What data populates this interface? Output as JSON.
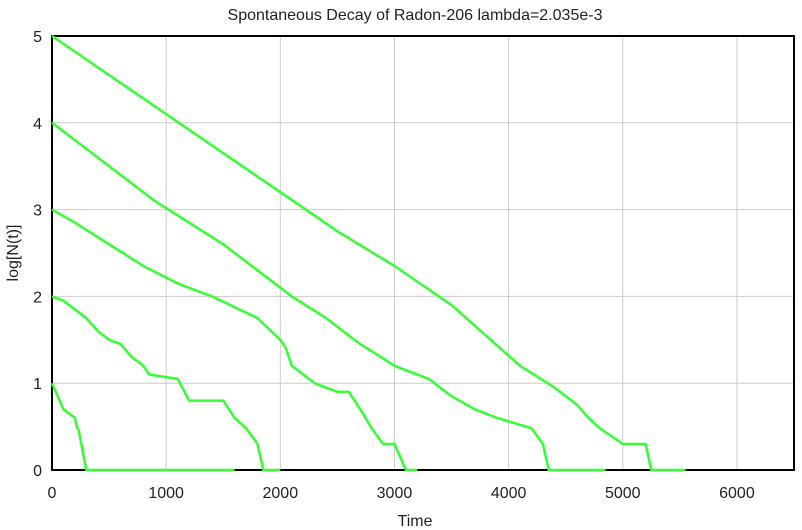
{
  "chart_data": {
    "type": "line",
    "title": "Spontaneous Decay of Radon-206 lambda=2.035e-3",
    "xlabel": "Time",
    "ylabel": "log[N(t)]",
    "xlim": [
      0,
      6500
    ],
    "ylim": [
      0,
      5
    ],
    "xticks": [
      0,
      1000,
      2000,
      3000,
      4000,
      5000,
      6000
    ],
    "yticks": [
      0,
      1,
      2,
      3,
      4,
      5
    ],
    "grid": true,
    "line_color": "#33ff33",
    "series": [
      {
        "x": [
          0,
          50,
          100,
          200,
          220,
          230,
          300,
          1600
        ],
        "y": [
          1.0,
          0.85,
          0.7,
          0.6,
          0.48,
          0.48,
          0.0,
          0.0
        ]
      },
      {
        "x": [
          0,
          100,
          200,
          300,
          400,
          500,
          600,
          700,
          800,
          850,
          1100,
          1200,
          1500,
          1600,
          1700,
          1800,
          1850,
          2000
        ],
        "y": [
          2.0,
          1.95,
          1.85,
          1.75,
          1.6,
          1.5,
          1.45,
          1.3,
          1.2,
          1.1,
          1.05,
          0.8,
          0.8,
          0.6,
          0.48,
          0.3,
          0.0,
          0.0
        ]
      },
      {
        "x": [
          0,
          200,
          500,
          800,
          1100,
          1400,
          1800,
          2000,
          2050,
          2100,
          2300,
          2500,
          2600,
          2700,
          2800,
          2900,
          3000,
          3100,
          3200
        ],
        "y": [
          3.0,
          2.85,
          2.6,
          2.35,
          2.15,
          2.0,
          1.75,
          1.5,
          1.4,
          1.2,
          1.0,
          0.9,
          0.9,
          0.7,
          0.48,
          0.3,
          0.3,
          0.0,
          0.0
        ]
      },
      {
        "x": [
          0,
          300,
          600,
          900,
          1200,
          1500,
          1800,
          2100,
          2400,
          2700,
          3000,
          3300,
          3500,
          3700,
          3900,
          4200,
          4300,
          4350,
          4850
        ],
        "y": [
          4.0,
          3.7,
          3.4,
          3.1,
          2.85,
          2.6,
          2.3,
          2.0,
          1.75,
          1.45,
          1.2,
          1.05,
          0.85,
          0.7,
          0.6,
          0.48,
          0.3,
          0.0,
          0.0
        ]
      },
      {
        "x": [
          0,
          500,
          1000,
          1500,
          2000,
          2500,
          3000,
          3500,
          3800,
          4100,
          4400,
          4600,
          4700,
          4800,
          5000,
          5100,
          5200,
          5250,
          5550
        ],
        "y": [
          5.0,
          4.55,
          4.1,
          3.65,
          3.2,
          2.75,
          2.35,
          1.9,
          1.55,
          1.2,
          0.95,
          0.75,
          0.6,
          0.48,
          0.3,
          0.3,
          0.3,
          0.0,
          0.0
        ]
      }
    ]
  }
}
